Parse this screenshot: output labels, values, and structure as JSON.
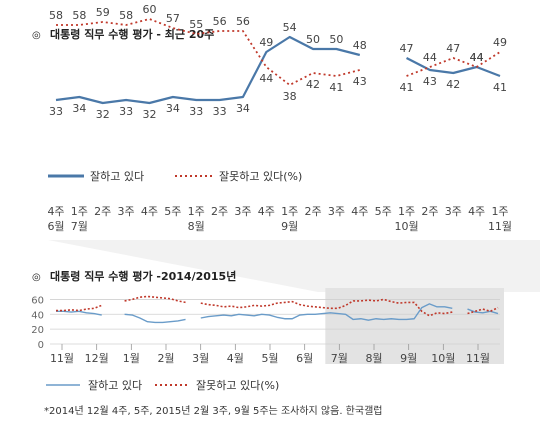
{
  "chart_data": [
    {
      "type": "line",
      "title_prefix": "◎",
      "title": "대통령 직무 수행 평가 - 최근 20주",
      "x_labels": [
        [
          "4주",
          "6월"
        ],
        [
          "1주",
          "7월"
        ],
        [
          "2주",
          ""
        ],
        [
          "3주",
          ""
        ],
        [
          "4주",
          ""
        ],
        [
          "5주",
          ""
        ],
        [
          "1주",
          "8월"
        ],
        [
          "2주",
          ""
        ],
        [
          "3주",
          ""
        ],
        [
          "4주",
          ""
        ],
        [
          "1주",
          "9월"
        ],
        [
          "2주",
          ""
        ],
        [
          "3주",
          ""
        ],
        [
          "4주",
          ""
        ],
        [
          "5주",
          ""
        ],
        [
          "1주",
          "10월"
        ],
        [
          "2주",
          ""
        ],
        [
          "3주",
          ""
        ],
        [
          "4주",
          ""
        ],
        [
          "1주",
          "11월"
        ]
      ],
      "series": [
        {
          "name": "잘하고 있다",
          "color": "#4a78a8",
          "style": "solid",
          "values": [
            33,
            34,
            32,
            33,
            32,
            34,
            33,
            33,
            34,
            49,
            54,
            50,
            50,
            48,
            null,
            47,
            43,
            42,
            44,
            41
          ]
        },
        {
          "name": "잘못하고 있다(%)",
          "color": "#c0392b",
          "style": "dotted",
          "values": [
            58,
            58,
            59,
            58,
            60,
            57,
            55,
            56,
            56,
            44,
            38,
            42,
            41,
            43,
            null,
            41,
            44,
            47,
            44,
            49
          ]
        }
      ]
    },
    {
      "type": "line",
      "title_prefix": "◎",
      "title": "대통령 직무 수행 평가 -2014/2015년",
      "y_ticks": [
        0,
        20,
        40,
        60
      ],
      "ylim": [
        0,
        70
      ],
      "month_labels": [
        "11월",
        "12월",
        "1월",
        "2월",
        "3월",
        "4월",
        "5월",
        "6월",
        "7월",
        "8월",
        "9월",
        "10월",
        "11월"
      ],
      "highlight_range": [
        "7월",
        "11월"
      ],
      "series": [
        {
          "name": "잘하고 있다",
          "color": "#6a9cc9",
          "style": "solid",
          "values": [
            44,
            44,
            43,
            44,
            42,
            41,
            39,
            null,
            null,
            40,
            39,
            35,
            30,
            29,
            29,
            30,
            31,
            33,
            null,
            35,
            37,
            38,
            39,
            38,
            40,
            39,
            38,
            40,
            39,
            36,
            34,
            34,
            39,
            40,
            40,
            41,
            42,
            41,
            40,
            33,
            34,
            32,
            34,
            33,
            34,
            33,
            33,
            34,
            49,
            54,
            50,
            50,
            48,
            null,
            47,
            43,
            42,
            44,
            41
          ]
        },
        {
          "name": "잘못하고 있다(%)",
          "color": "#c0392b",
          "style": "dotted",
          "values": [
            45,
            45,
            46,
            45,
            47,
            48,
            52,
            null,
            null,
            58,
            60,
            63,
            64,
            63,
            62,
            61,
            58,
            56,
            null,
            55,
            53,
            52,
            50,
            51,
            49,
            50,
            52,
            51,
            52,
            55,
            56,
            57,
            53,
            51,
            50,
            49,
            48,
            48,
            52,
            58,
            58,
            59,
            58,
            60,
            57,
            55,
            56,
            56,
            44,
            38,
            42,
            41,
            43,
            null,
            41,
            44,
            47,
            44,
            49
          ]
        }
      ],
      "footnote": "*2014년 12월 4주, 5주, 2015년 2월 3주, 9월 5주는 조사하지 않음. 한국갤럽"
    }
  ]
}
